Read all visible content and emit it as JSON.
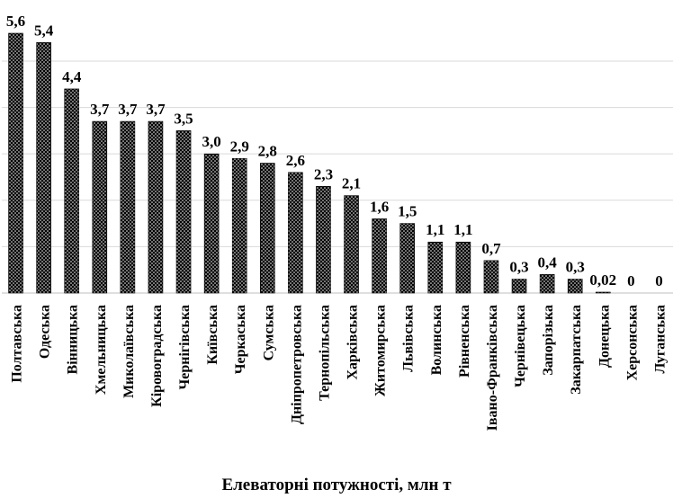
{
  "chart_data": {
    "type": "bar",
    "xlabel": "Елеваторні потужності, млн т",
    "ylabel": "",
    "ylim": [
      0,
      5.6
    ],
    "grid": true,
    "categories": [
      "Полтавська",
      "Одеська",
      "Вінницька",
      "Хмельницька",
      "Миколаївська",
      "Кіровоградська",
      "Чернігівська",
      "Київська",
      "Черкаська",
      "Сумська",
      "Дніпропетровська",
      "Тернопільська",
      "Харківська",
      "Житомирська",
      "Львівська",
      "Волинська",
      "Рівненська",
      "Івано-Франківська",
      "Чернівецька",
      "Запорізька",
      "Закарпатська",
      "Донецька",
      "Херсонська",
      "Луганська"
    ],
    "values": [
      5.6,
      5.4,
      4.4,
      3.7,
      3.7,
      3.7,
      3.5,
      3.0,
      2.9,
      2.8,
      2.6,
      2.3,
      2.1,
      1.6,
      1.5,
      1.1,
      1.1,
      0.7,
      0.3,
      0.4,
      0.3,
      0.02,
      0,
      0
    ],
    "value_labels": [
      "5,6",
      "5,4",
      "4,4",
      "3,7",
      "3,7",
      "3,7",
      "3,5",
      "3,0",
      "2,9",
      "2,8",
      "2,6",
      "2,3",
      "2,1",
      "1,6",
      "1,5",
      "1,1",
      "1,1",
      "0,7",
      "0,3",
      "0,4",
      "0,3",
      "0,02",
      "0",
      "0"
    ],
    "colors": {
      "bar_fill": "#000000",
      "dots": "#ffffff",
      "grid": "#d9d9d9"
    }
  }
}
